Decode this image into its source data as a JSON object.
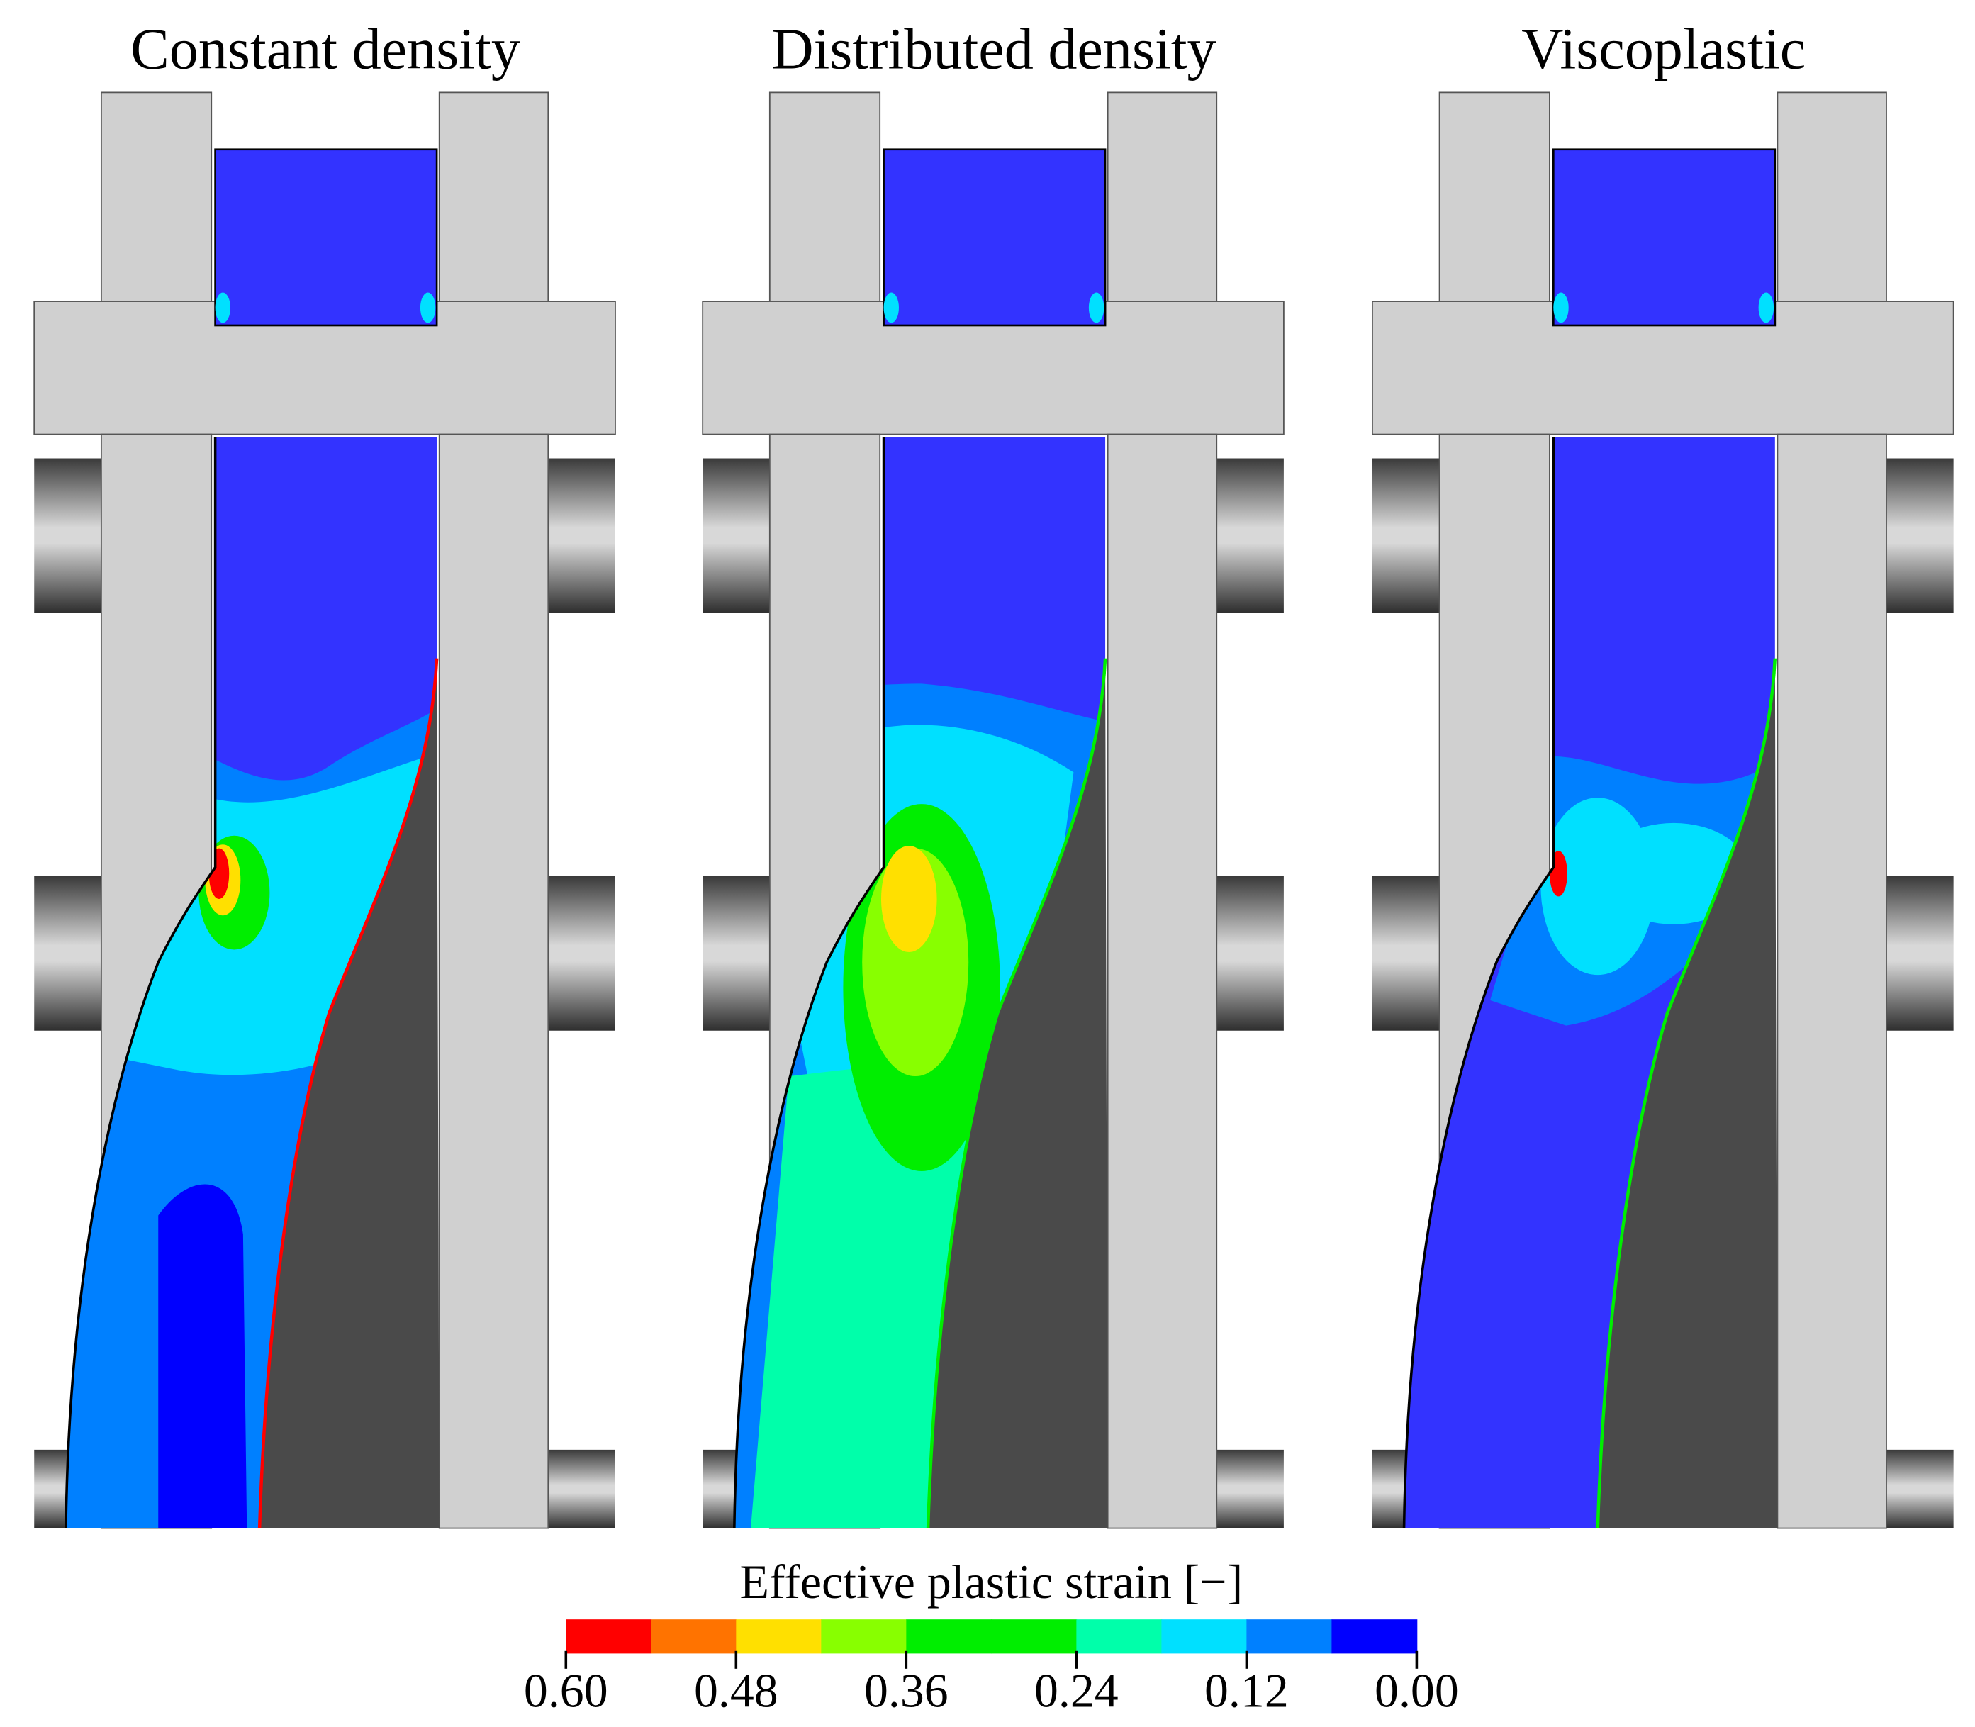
{
  "panels": [
    {
      "title": "Constant density"
    },
    {
      "title": "Distributed density"
    },
    {
      "title": "Viscoplastic"
    }
  ],
  "legend": {
    "title": "Effective plastic strain [−]",
    "colors": [
      "#ff0000",
      "#ff7300",
      "#ffe000",
      "#88ff00",
      "#00ee00",
      "#00ee00",
      "#00ffaa",
      "#00e0ff",
      "#0080ff",
      "#0000ff"
    ],
    "ticks": [
      {
        "value": 0.6,
        "label": "0.60"
      },
      {
        "value": 0.48,
        "label": "0.48"
      },
      {
        "value": 0.36,
        "label": "0.36"
      },
      {
        "value": 0.24,
        "label": "0.24"
      },
      {
        "value": 0.12,
        "label": "0.12"
      },
      {
        "value": 0.0,
        "label": "0.00"
      }
    ]
  }
}
